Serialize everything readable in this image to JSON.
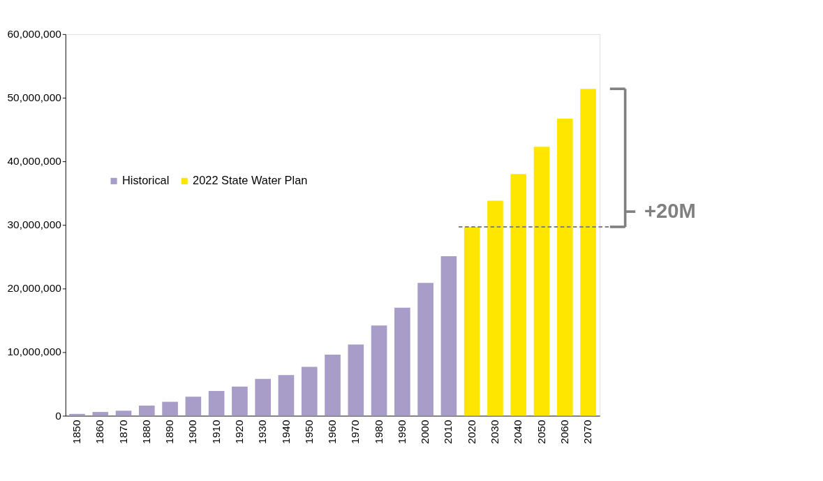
{
  "chart_data": {
    "type": "bar",
    "categories": [
      "1850",
      "1860",
      "1870",
      "1880",
      "1890",
      "1900",
      "1910",
      "1920",
      "1930",
      "1940",
      "1950",
      "1960",
      "1970",
      "1980",
      "1990",
      "2000",
      "2010",
      "2020",
      "2030",
      "2040",
      "2050",
      "2060",
      "2070"
    ],
    "series": [
      {
        "name": "Historical",
        "color": "#a89cc8",
        "values": [
          300000,
          600000,
          800000,
          1600000,
          2200000,
          3000000,
          3900000,
          4600000,
          5800000,
          6400000,
          7700000,
          9600000,
          11200000,
          14200000,
          17000000,
          20900000,
          25100000,
          null,
          null,
          null,
          null,
          null,
          null
        ]
      },
      {
        "name": "2022 State Water Plan",
        "color": "#ffe600",
        "values": [
          null,
          null,
          null,
          null,
          null,
          null,
          null,
          null,
          null,
          null,
          null,
          null,
          null,
          null,
          null,
          null,
          null,
          29700000,
          33800000,
          38000000,
          42300000,
          46700000,
          51400000
        ]
      }
    ],
    "ylim": [
      0,
      60000000
    ],
    "yticks": [
      0,
      {
        "value": 10000000,
        "label": "10,000,000"
      },
      {
        "value": 20000000,
        "label": "20,000,000"
      },
      {
        "value": 30000000,
        "label": "30,000,000"
      },
      {
        "value": 40000000,
        "label": "40,000,000"
      },
      {
        "value": 50000000,
        "label": "50,000,000"
      },
      {
        "value": 60000000,
        "label": "60,000,000"
      }
    ],
    "ref_lines": [
      {
        "axis": "y",
        "value": 29700000,
        "label": "+20M",
        "color": "#808080",
        "line_style": "dashed"
      }
    ],
    "grid": false,
    "legend": "top left"
  }
}
